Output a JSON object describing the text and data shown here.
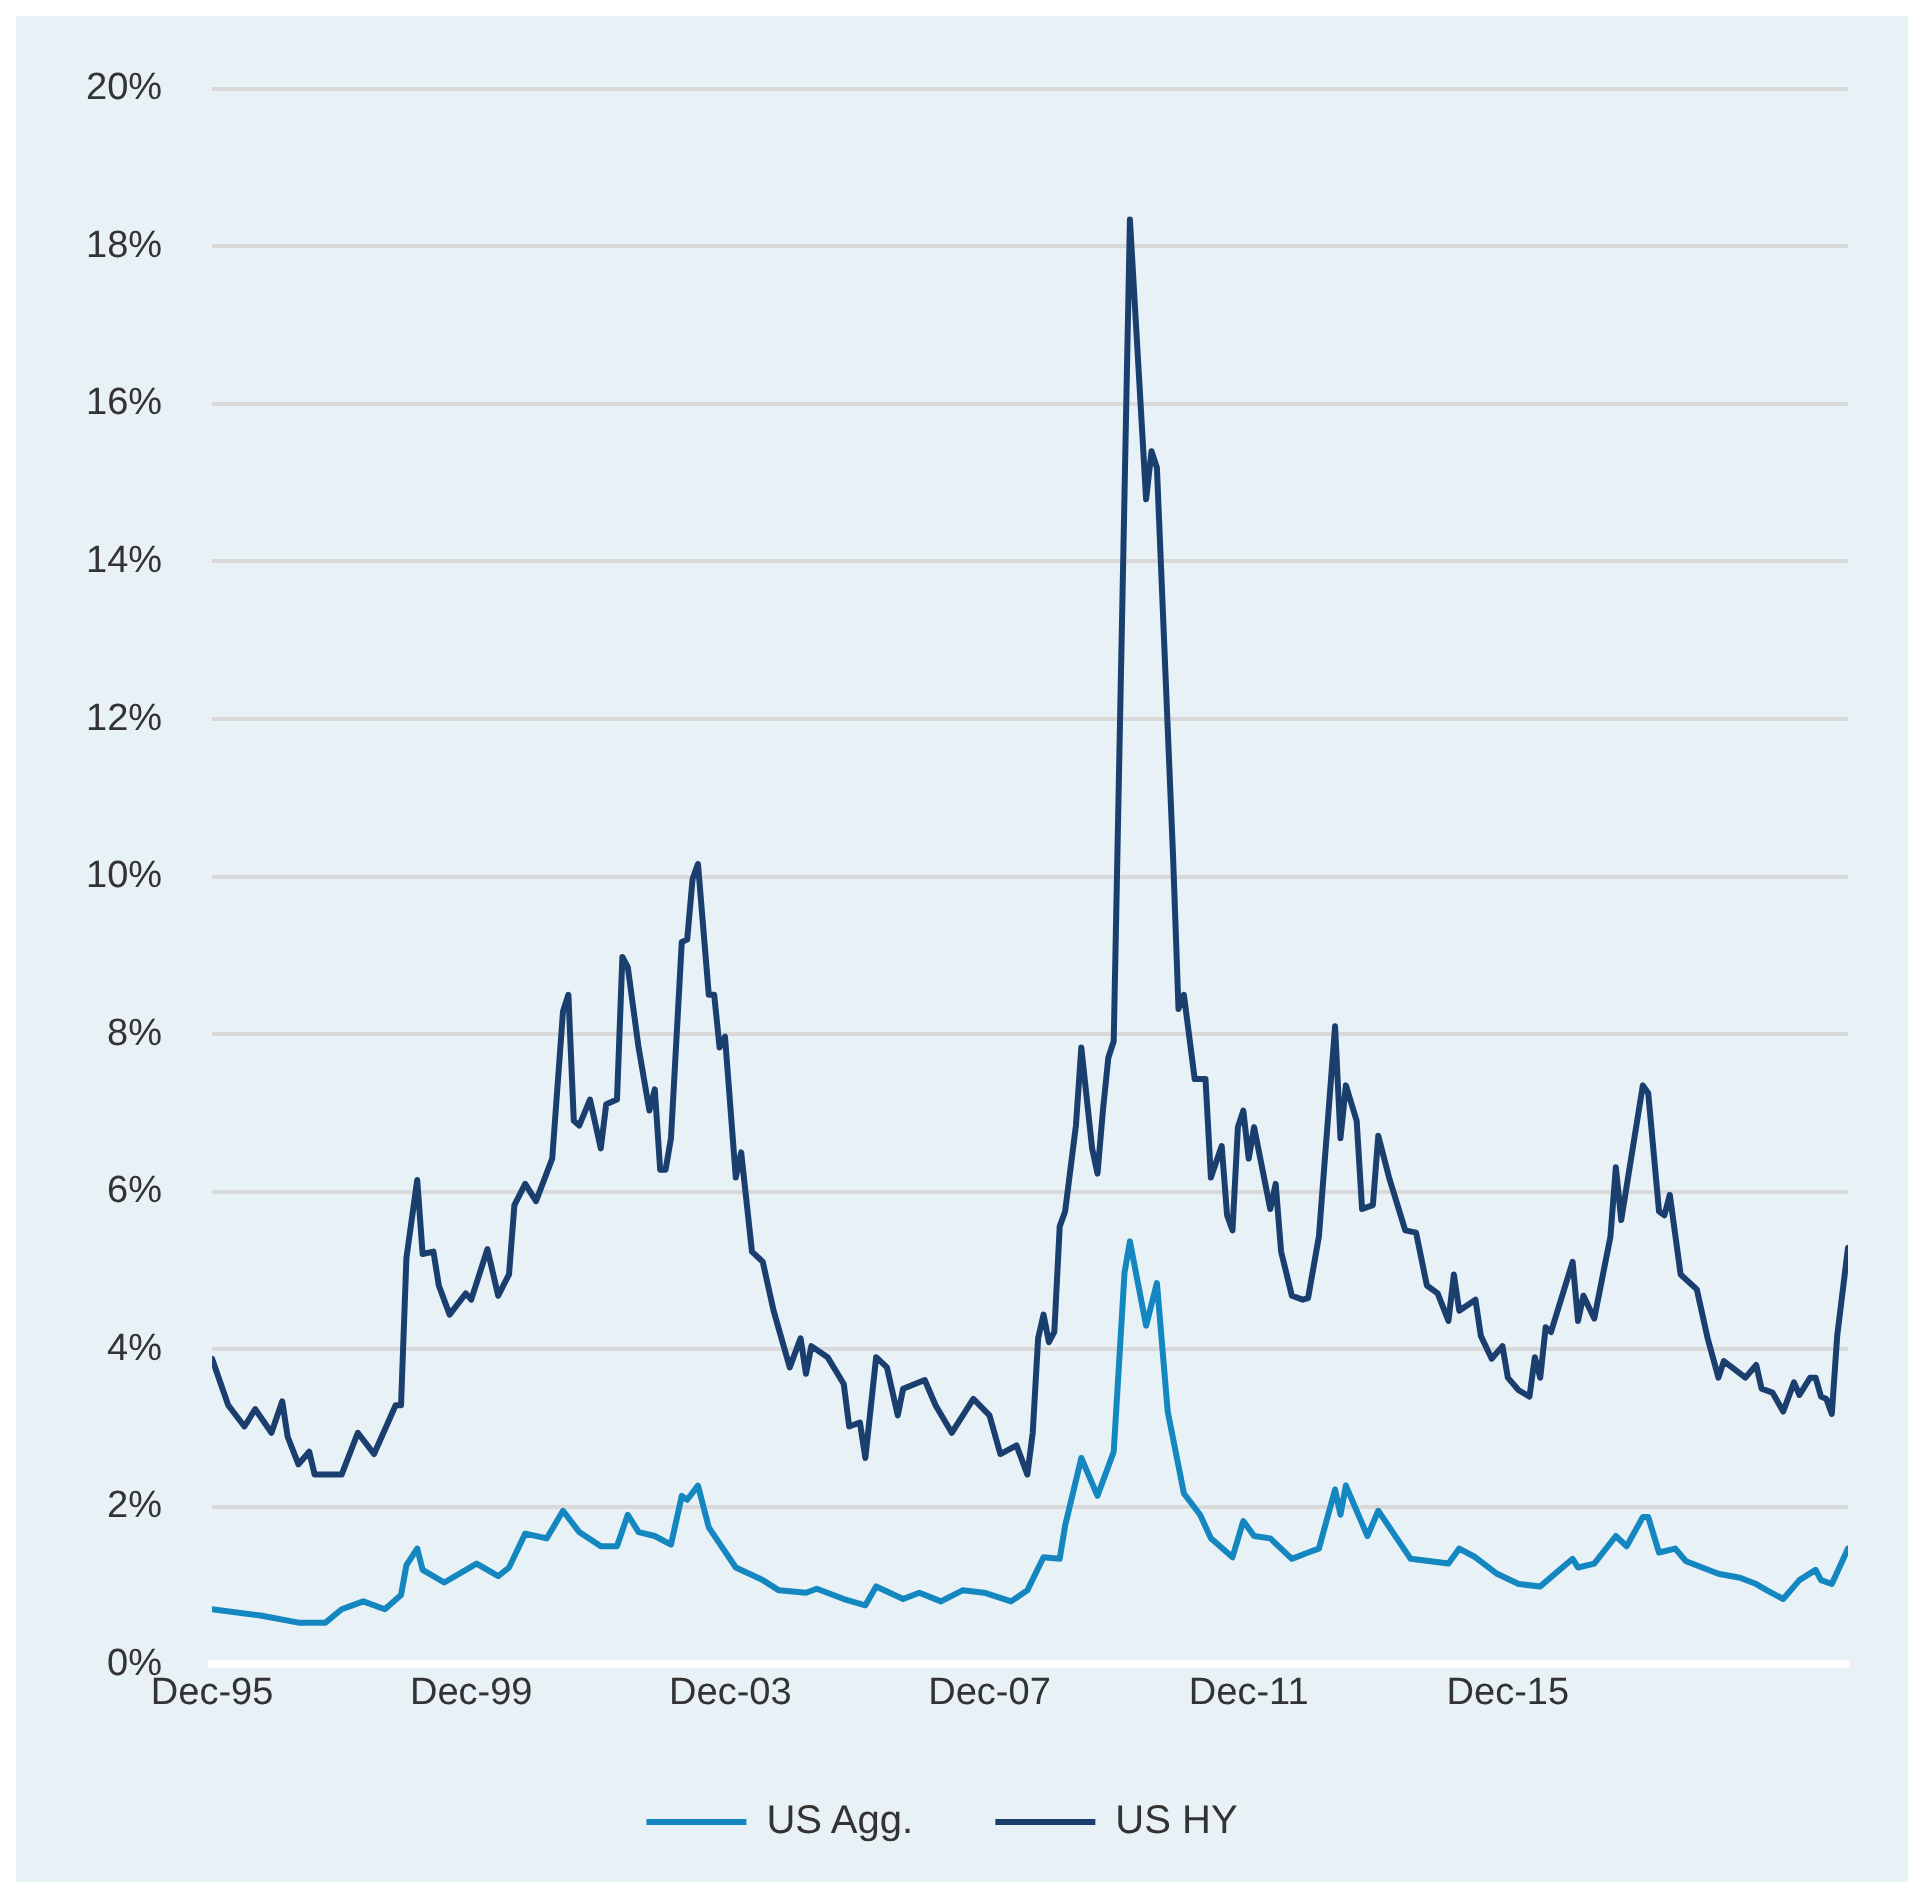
{
  "chart_data": {
    "type": "line",
    "xlim": [
      "1995-12",
      "2021-03"
    ],
    "xticks": [
      {
        "value": "1995-12",
        "label": "Dec-95"
      },
      {
        "value": "1999-12",
        "label": "Dec-99"
      },
      {
        "value": "2003-12",
        "label": "Dec-03"
      },
      {
        "value": "2007-12",
        "label": "Dec-07"
      },
      {
        "value": "2011-12",
        "label": "Dec-11"
      },
      {
        "value": "2015-12",
        "label": "Dec-15"
      }
    ],
    "ylim": [
      0,
      20
    ],
    "yticks": [
      {
        "value": 0,
        "label": "0%"
      },
      {
        "value": 2,
        "label": "2%"
      },
      {
        "value": 4,
        "label": "4%"
      },
      {
        "value": 6,
        "label": "6%"
      },
      {
        "value": 8,
        "label": "8%"
      },
      {
        "value": 10,
        "label": "10%"
      },
      {
        "value": 12,
        "label": "12%"
      },
      {
        "value": 14,
        "label": "14%"
      },
      {
        "value": 16,
        "label": "16%"
      },
      {
        "value": 18,
        "label": "18%"
      },
      {
        "value": 20,
        "label": "20%"
      }
    ],
    "grid": "y",
    "legend": "bottom",
    "marker": "none",
    "line_style": "solid",
    "series": [
      {
        "name": "US Agg.",
        "color": "#1486c0",
        "x": [
          "1995-12",
          "1996-09",
          "1997-04",
          "1997-09",
          "1997-12",
          "1998-02",
          "1998-04",
          "1998-08",
          "1998-11",
          "1998-12",
          "1999-02",
          "1999-03",
          "1999-07",
          "2000-01",
          "2000-05",
          "2000-07",
          "2000-10",
          "2001-02",
          "2001-05",
          "2001-08",
          "2001-12",
          "2002-03",
          "2002-05",
          "2002-07",
          "2002-10",
          "2003-01",
          "2003-03",
          "2003-04",
          "2003-06",
          "2003-08",
          "2004-01",
          "2004-06",
          "2004-09",
          "2005-02",
          "2005-04",
          "2005-09",
          "2006-01",
          "2006-03",
          "2006-08",
          "2006-11",
          "2007-03",
          "2007-07",
          "2007-11",
          "2008-04",
          "2008-07",
          "2008-10",
          "2009-01",
          "2009-02",
          "2009-05",
          "2009-08",
          "2009-11",
          "2010-01",
          "2010-02",
          "2010-05",
          "2010-07",
          "2010-09",
          "2010-12",
          "2011-03",
          "2011-05",
          "2011-09",
          "2011-11",
          "2012-01",
          "2012-04",
          "2012-08",
          "2012-11",
          "2013-01",
          "2013-04",
          "2013-05",
          "2013-06",
          "2013-10",
          "2013-12",
          "2014-06",
          "2015-01",
          "2015-03",
          "2015-06",
          "2015-10",
          "2016-02",
          "2016-06",
          "2016-12",
          "2017-01",
          "2017-04",
          "2017-08",
          "2017-10",
          "2018-01",
          "2018-02",
          "2018-04",
          "2018-07",
          "2018-09",
          "2019-03",
          "2019-07",
          "2019-10",
          "2019-12",
          "2020-03",
          "2020-06",
          "2020-09",
          "2020-10",
          "2020-12",
          "2021-03"
        ],
        "values": [
          0.7,
          0.62,
          0.53,
          0.53,
          0.7,
          0.75,
          0.8,
          0.7,
          0.88,
          1.26,
          1.47,
          1.2,
          1.04,
          1.28,
          1.12,
          1.23,
          1.66,
          1.6,
          1.95,
          1.68,
          1.5,
          1.5,
          1.9,
          1.68,
          1.63,
          1.52,
          2.14,
          2.09,
          2.27,
          1.74,
          1.23,
          1.07,
          0.94,
          0.91,
          0.96,
          0.83,
          0.75,
          0.99,
          0.83,
          0.91,
          0.8,
          0.94,
          0.91,
          0.8,
          0.94,
          1.36,
          1.34,
          1.76,
          2.62,
          2.14,
          2.7,
          4.97,
          5.37,
          4.3,
          4.84,
          3.21,
          2.17,
          1.9,
          1.6,
          1.36,
          1.82,
          1.63,
          1.6,
          1.34,
          1.42,
          1.47,
          2.22,
          1.9,
          2.27,
          1.63,
          1.95,
          1.34,
          1.28,
          1.47,
          1.36,
          1.15,
          1.02,
          0.99,
          1.34,
          1.23,
          1.28,
          1.63,
          1.5,
          1.87,
          1.87,
          1.42,
          1.47,
          1.31,
          1.15,
          1.1,
          1.02,
          0.94,
          0.83,
          1.07,
          1.2,
          1.07,
          1.02,
          1.47
        ]
      },
      {
        "name": "US HY",
        "color": "#1a3f6f",
        "x": [
          "1995-12",
          "1996-03",
          "1996-06",
          "1996-08",
          "1996-11",
          "1997-01",
          "1997-02",
          "1997-04",
          "1997-06",
          "1997-07",
          "1997-12",
          "1998-03",
          "1998-06",
          "1998-10",
          "1998-11",
          "1998-12",
          "1999-02",
          "1999-03",
          "1999-05",
          "1999-06",
          "1999-08",
          "1999-11",
          "1999-12",
          "2000-03",
          "2000-05",
          "2000-07",
          "2000-08",
          "2000-10",
          "2000-12",
          "2001-03",
          "2001-05",
          "2001-06",
          "2001-07",
          "2001-08",
          "2001-10",
          "2001-12",
          "2002-01",
          "2002-03",
          "2002-04",
          "2002-05",
          "2002-07",
          "2002-09",
          "2002-10",
          "2002-11",
          "2002-12",
          "2003-01",
          "2003-03",
          "2003-04",
          "2003-05",
          "2003-06",
          "2003-08",
          "2003-09",
          "2003-10",
          "2003-11",
          "2004-01",
          "2004-02",
          "2004-04",
          "2004-06",
          "2004-08",
          "2004-11",
          "2005-01",
          "2005-02",
          "2005-03",
          "2005-06",
          "2005-09",
          "2005-10",
          "2005-12",
          "2006-01",
          "2006-03",
          "2006-05",
          "2006-07",
          "2006-08",
          "2006-12",
          "2007-02",
          "2007-05",
          "2007-09",
          "2007-12",
          "2008-02",
          "2008-05",
          "2008-07",
          "2008-08",
          "2008-09",
          "2008-10",
          "2008-11",
          "2008-12",
          "2009-01",
          "2009-02",
          "2009-04",
          "2009-05",
          "2009-07",
          "2009-08",
          "2009-09",
          "2009-10",
          "2009-11",
          "2010-02",
          "2010-05",
          "2010-06",
          "2010-07",
          "2010-10",
          "2010-11",
          "2010-12",
          "2011-02",
          "2011-04",
          "2011-05",
          "2011-07",
          "2011-08",
          "2011-09",
          "2011-10",
          "2011-11",
          "2011-12",
          "2012-01",
          "2012-04",
          "2012-05",
          "2012-06",
          "2012-08",
          "2012-10",
          "2012-11",
          "2013-01",
          "2013-04",
          "2013-05",
          "2013-06",
          "2013-08",
          "2013-09",
          "2013-11",
          "2013-12",
          "2014-02",
          "2014-05",
          "2014-07",
          "2014-09",
          "2014-11",
          "2015-01",
          "2015-02",
          "2015-03",
          "2015-06",
          "2015-07",
          "2015-09",
          "2015-11",
          "2015-12",
          "2016-02",
          "2016-04",
          "2016-05",
          "2016-06",
          "2016-07",
          "2016-08",
          "2016-12",
          "2017-01",
          "2017-02",
          "2017-04",
          "2017-07",
          "2017-08",
          "2017-09",
          "2018-01",
          "2018-02",
          "2018-04",
          "2018-05",
          "2018-06",
          "2018-08",
          "2018-11",
          "2019-01",
          "2019-03",
          "2019-04",
          "2019-08",
          "2019-10",
          "2019-11",
          "2020-01",
          "2020-03",
          "2020-05",
          "2020-06",
          "2020-08",
          "2020-09",
          "2020-10",
          "2020-11",
          "2020-12",
          "2021-01",
          "2021-03"
        ],
        "values": [
          3.88,
          3.29,
          3.02,
          3.24,
          2.94,
          3.34,
          2.89,
          2.54,
          2.7,
          2.41,
          2.41,
          2.94,
          2.67,
          3.29,
          3.29,
          5.16,
          6.15,
          5.21,
          5.24,
          4.81,
          4.44,
          4.71,
          4.63,
          5.27,
          4.68,
          4.95,
          5.83,
          6.1,
          5.88,
          6.42,
          8.29,
          8.5,
          6.9,
          6.84,
          7.17,
          6.55,
          7.11,
          7.17,
          8.98,
          8.85,
          7.83,
          7.03,
          7.3,
          6.28,
          6.28,
          6.68,
          9.17,
          9.2,
          9.97,
          10.16,
          8.5,
          8.5,
          7.83,
          7.97,
          6.18,
          6.5,
          5.24,
          5.11,
          4.49,
          3.77,
          4.14,
          3.69,
          4.04,
          3.9,
          3.56,
          3.02,
          3.07,
          2.62,
          3.9,
          3.77,
          3.16,
          3.5,
          3.61,
          3.29,
          2.94,
          3.37,
          3.16,
          2.67,
          2.78,
          2.41,
          2.94,
          4.14,
          4.44,
          4.09,
          4.22,
          5.56,
          5.75,
          6.84,
          7.83,
          6.55,
          6.23,
          7.03,
          7.7,
          7.91,
          18.34,
          14.79,
          15.4,
          15.19,
          10.24,
          8.32,
          8.5,
          7.43,
          7.43,
          6.18,
          6.58,
          5.7,
          5.51,
          6.82,
          7.03,
          6.42,
          6.82,
          5.78,
          6.1,
          5.24,
          4.68,
          4.63,
          4.65,
          5.43,
          8.1,
          6.68,
          7.35,
          6.9,
          5.78,
          5.83,
          6.71,
          6.18,
          5.51,
          5.48,
          4.81,
          4.71,
          4.36,
          4.95,
          4.49,
          4.63,
          4.17,
          3.88,
          4.04,
          3.64,
          3.48,
          3.4,
          3.9,
          3.64,
          4.28,
          4.22,
          5.11,
          4.36,
          4.68,
          4.39,
          5.43,
          6.31,
          5.64,
          7.35,
          7.25,
          5.75,
          5.7,
          5.96,
          4.95,
          4.76,
          4.14,
          3.64,
          3.85,
          3.64,
          3.8,
          3.5,
          3.45,
          3.21,
          3.58,
          3.42,
          3.64,
          3.64,
          3.4,
          3.37,
          3.18,
          4.17,
          5.29
        ]
      }
    ]
  }
}
